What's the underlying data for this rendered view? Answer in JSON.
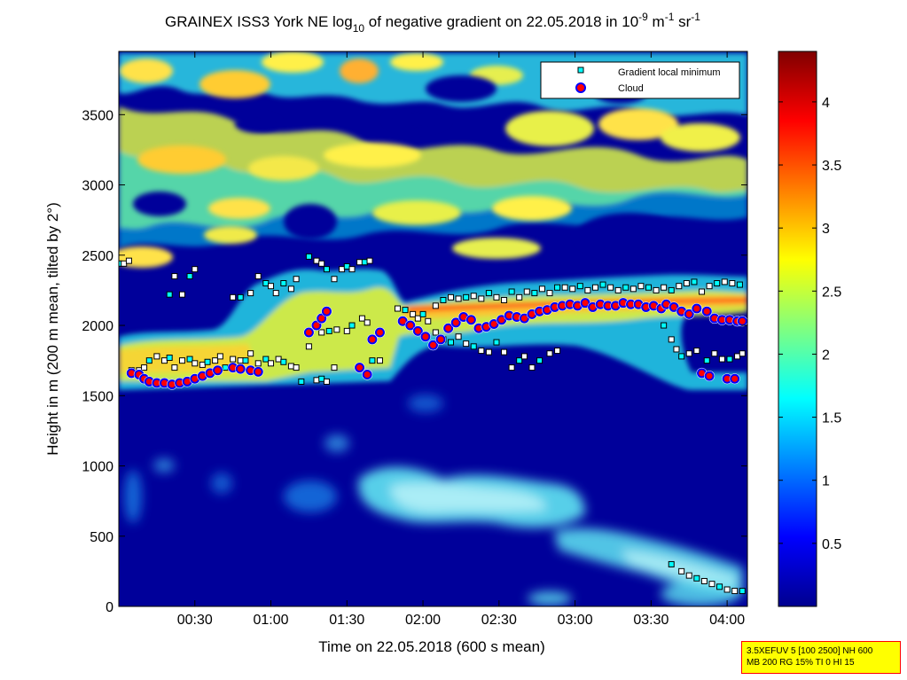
{
  "chart_data": {
    "type": "heatmap",
    "title": {
      "prefix": "GRAINEX ISS3 York NE log",
      "log_base": "10",
      "middle": " of negative gradient on 22.05.2018 in 10",
      "exp1": "-9",
      "unit_m": " m",
      "exp2": "-1",
      "unit_sr": " sr",
      "exp3": "-1"
    },
    "xlabel": "Time on 22.05.2018 (600 s mean)",
    "ylabel": "Height in m (200 m mean, tilted by 2°)",
    "xlim": [
      0,
      248
    ],
    "ylim": [
      0,
      3950
    ],
    "x_ticks": [
      {
        "value": 30,
        "label": "00:30"
      },
      {
        "value": 60,
        "label": "01:00"
      },
      {
        "value": 90,
        "label": "01:30"
      },
      {
        "value": 120,
        "label": "02:00"
      },
      {
        "value": 150,
        "label": "02:30"
      },
      {
        "value": 180,
        "label": "03:00"
      },
      {
        "value": 210,
        "label": "03:30"
      },
      {
        "value": 240,
        "label": "04:00"
      }
    ],
    "y_ticks": [
      {
        "value": 0,
        "label": "0"
      },
      {
        "value": 500,
        "label": "500"
      },
      {
        "value": 1000,
        "label": "1000"
      },
      {
        "value": 1500,
        "label": "1500"
      },
      {
        "value": 2000,
        "label": "2000"
      },
      {
        "value": 2500,
        "label": "2500"
      },
      {
        "value": 3000,
        "label": "3000"
      },
      {
        "value": 3500,
        "label": "3500"
      }
    ],
    "colorbar": {
      "range": [
        0,
        4.4
      ],
      "ticks": [
        {
          "value": 0.5,
          "label": "0.5"
        },
        {
          "value": 1,
          "label": "1"
        },
        {
          "value": 1.5,
          "label": "1.5"
        },
        {
          "value": 2,
          "label": "2"
        },
        {
          "value": 2.5,
          "label": "2.5"
        },
        {
          "value": 3,
          "label": "3"
        },
        {
          "value": 3.5,
          "label": "3.5"
        },
        {
          "value": 4,
          "label": "4"
        }
      ],
      "colormap": "jet"
    },
    "legend": {
      "placement": "top-right",
      "entries": [
        {
          "label": "Gradient local minimum",
          "marker": "square",
          "color": "#00ffff"
        },
        {
          "label": "Cloud",
          "marker": "circle",
          "color": "#ff0000"
        }
      ]
    },
    "heatmap_features": [
      {
        "kind": "band",
        "x": [
          0,
          248
        ],
        "y": [
          2800,
          3950
        ],
        "level": 2.3
      },
      {
        "kind": "band",
        "x": [
          0,
          30
        ],
        "y": [
          1600,
          1900
        ],
        "level": 2.4
      },
      {
        "kind": "band",
        "x": [
          30,
          120
        ],
        "y": [
          1600,
          2400
        ],
        "level": 2.2
      },
      {
        "kind": "band",
        "x": [
          120,
          248
        ],
        "y": [
          2050,
          2350
        ],
        "level": 2.5
      },
      {
        "kind": "blob",
        "x": [
          95,
          165
        ],
        "y": [
          560,
          1000
        ],
        "level": 1.4
      },
      {
        "kind": "blob",
        "x": [
          165,
          245
        ],
        "y": [
          250,
          600
        ],
        "level": 1.3
      }
    ],
    "series": [
      {
        "name": "Gradient local minimum",
        "points": [
          [
            0,
            2440
          ],
          [
            2,
            2440
          ],
          [
            4,
            2460
          ],
          [
            5,
            1680
          ],
          [
            8,
            1680
          ],
          [
            10,
            1700
          ],
          [
            12,
            1750
          ],
          [
            15,
            1780
          ],
          [
            18,
            1750
          ],
          [
            20,
            1770
          ],
          [
            22,
            1700
          ],
          [
            25,
            1750
          ],
          [
            28,
            1760
          ],
          [
            30,
            1730
          ],
          [
            33,
            1720
          ],
          [
            35,
            1740
          ],
          [
            38,
            1750
          ],
          [
            40,
            1780
          ],
          [
            42,
            1700
          ],
          [
            45,
            1760
          ],
          [
            48,
            1750
          ],
          [
            50,
            1750
          ],
          [
            52,
            1800
          ],
          [
            55,
            1730
          ],
          [
            58,
            1760
          ],
          [
            60,
            1730
          ],
          [
            63,
            1760
          ],
          [
            65,
            1740
          ],
          [
            68,
            1710
          ],
          [
            70,
            1700
          ],
          [
            72,
            1600
          ],
          [
            75,
            1850
          ],
          [
            78,
            1610
          ],
          [
            80,
            1620
          ],
          [
            82,
            1600
          ],
          [
            85,
            1700
          ],
          [
            20,
            2220
          ],
          [
            22,
            2350
          ],
          [
            25,
            2220
          ],
          [
            28,
            2350
          ],
          [
            30,
            2400
          ],
          [
            45,
            2200
          ],
          [
            48,
            2200
          ],
          [
            52,
            2230
          ],
          [
            55,
            2350
          ],
          [
            58,
            2300
          ],
          [
            60,
            2280
          ],
          [
            62,
            2230
          ],
          [
            65,
            2300
          ],
          [
            68,
            2260
          ],
          [
            70,
            2330
          ],
          [
            75,
            2490
          ],
          [
            78,
            2460
          ],
          [
            80,
            2440
          ],
          [
            82,
            2400
          ],
          [
            85,
            2330
          ],
          [
            88,
            2400
          ],
          [
            90,
            2420
          ],
          [
            92,
            2400
          ],
          [
            95,
            2450
          ],
          [
            97,
            2450
          ],
          [
            99,
            2460
          ],
          [
            80,
            1950
          ],
          [
            83,
            1960
          ],
          [
            86,
            1970
          ],
          [
            90,
            1960
          ],
          [
            92,
            2000
          ],
          [
            96,
            2050
          ],
          [
            98,
            2020
          ],
          [
            100,
            1750
          ],
          [
            103,
            1750
          ],
          [
            110,
            2120
          ],
          [
            113,
            2110
          ],
          [
            116,
            2080
          ],
          [
            118,
            2050
          ],
          [
            120,
            2080
          ],
          [
            122,
            2030
          ],
          [
            125,
            2140
          ],
          [
            128,
            2180
          ],
          [
            131,
            2200
          ],
          [
            134,
            2190
          ],
          [
            137,
            2200
          ],
          [
            140,
            2210
          ],
          [
            143,
            2190
          ],
          [
            146,
            2230
          ],
          [
            149,
            2200
          ],
          [
            152,
            2180
          ],
          [
            155,
            2240
          ],
          [
            158,
            2200
          ],
          [
            161,
            2240
          ],
          [
            164,
            2230
          ],
          [
            167,
            2260
          ],
          [
            170,
            2230
          ],
          [
            173,
            2270
          ],
          [
            176,
            2270
          ],
          [
            179,
            2260
          ],
          [
            182,
            2280
          ],
          [
            185,
            2250
          ],
          [
            188,
            2270
          ],
          [
            191,
            2290
          ],
          [
            194,
            2270
          ],
          [
            197,
            2250
          ],
          [
            200,
            2270
          ],
          [
            203,
            2260
          ],
          [
            206,
            2280
          ],
          [
            209,
            2270
          ],
          [
            212,
            2250
          ],
          [
            215,
            2270
          ],
          [
            218,
            2250
          ],
          [
            221,
            2280
          ],
          [
            224,
            2300
          ],
          [
            227,
            2310
          ],
          [
            230,
            2240
          ],
          [
            233,
            2280
          ],
          [
            236,
            2300
          ],
          [
            239,
            2310
          ],
          [
            242,
            2300
          ],
          [
            245,
            2290
          ],
          [
            125,
            1950
          ],
          [
            128,
            1900
          ],
          [
            131,
            1880
          ],
          [
            134,
            1920
          ],
          [
            137,
            1870
          ],
          [
            140,
            1850
          ],
          [
            143,
            1820
          ],
          [
            146,
            1810
          ],
          [
            149,
            1880
          ],
          [
            152,
            1810
          ],
          [
            155,
            1700
          ],
          [
            158,
            1750
          ],
          [
            160,
            1780
          ],
          [
            163,
            1700
          ],
          [
            166,
            1750
          ],
          [
            170,
            1800
          ],
          [
            173,
            1820
          ],
          [
            215,
            2000
          ],
          [
            218,
            1900
          ],
          [
            220,
            1830
          ],
          [
            222,
            1780
          ],
          [
            225,
            1800
          ],
          [
            228,
            1820
          ],
          [
            232,
            1750
          ],
          [
            235,
            1800
          ],
          [
            238,
            1760
          ],
          [
            241,
            1760
          ],
          [
            244,
            1780
          ],
          [
            246,
            1800
          ],
          [
            218,
            300
          ],
          [
            222,
            250
          ],
          [
            225,
            220
          ],
          [
            228,
            200
          ],
          [
            231,
            180
          ],
          [
            234,
            160
          ],
          [
            237,
            140
          ],
          [
            240,
            120
          ],
          [
            243,
            110
          ],
          [
            246,
            110
          ]
        ]
      },
      {
        "name": "Cloud",
        "points": [
          [
            5,
            1660
          ],
          [
            8,
            1650
          ],
          [
            10,
            1620
          ],
          [
            12,
            1600
          ],
          [
            15,
            1590
          ],
          [
            18,
            1590
          ],
          [
            21,
            1580
          ],
          [
            24,
            1590
          ],
          [
            27,
            1600
          ],
          [
            30,
            1620
          ],
          [
            33,
            1640
          ],
          [
            36,
            1660
          ],
          [
            39,
            1680
          ],
          [
            45,
            1700
          ],
          [
            48,
            1690
          ],
          [
            52,
            1680
          ],
          [
            55,
            1670
          ],
          [
            75,
            1950
          ],
          [
            78,
            2000
          ],
          [
            80,
            2050
          ],
          [
            82,
            2100
          ],
          [
            95,
            1700
          ],
          [
            98,
            1650
          ],
          [
            100,
            1900
          ],
          [
            103,
            1950
          ],
          [
            112,
            2030
          ],
          [
            115,
            2000
          ],
          [
            118,
            1960
          ],
          [
            121,
            1920
          ],
          [
            124,
            1860
          ],
          [
            127,
            1900
          ],
          [
            130,
            1980
          ],
          [
            133,
            2020
          ],
          [
            136,
            2060
          ],
          [
            139,
            2040
          ],
          [
            142,
            1980
          ],
          [
            145,
            1990
          ],
          [
            148,
            2010
          ],
          [
            151,
            2040
          ],
          [
            154,
            2070
          ],
          [
            157,
            2060
          ],
          [
            160,
            2050
          ],
          [
            163,
            2080
          ],
          [
            166,
            2100
          ],
          [
            169,
            2110
          ],
          [
            172,
            2130
          ],
          [
            175,
            2140
          ],
          [
            178,
            2150
          ],
          [
            181,
            2140
          ],
          [
            184,
            2160
          ],
          [
            187,
            2130
          ],
          [
            190,
            2150
          ],
          [
            193,
            2140
          ],
          [
            196,
            2140
          ],
          [
            199,
            2160
          ],
          [
            202,
            2150
          ],
          [
            205,
            2150
          ],
          [
            208,
            2130
          ],
          [
            211,
            2140
          ],
          [
            214,
            2120
          ],
          [
            216,
            2150
          ],
          [
            219,
            2130
          ],
          [
            222,
            2100
          ],
          [
            225,
            2080
          ],
          [
            228,
            2120
          ],
          [
            232,
            2100
          ],
          [
            235,
            2050
          ],
          [
            238,
            2040
          ],
          [
            241,
            2040
          ],
          [
            244,
            2030
          ],
          [
            246,
            2030
          ],
          [
            230,
            1660
          ],
          [
            233,
            1640
          ],
          [
            240,
            1620
          ],
          [
            243,
            1620
          ]
        ]
      }
    ]
  },
  "info_box": {
    "line1": "3.5XEFUV 5 [100 2500] NH 600",
    "line2": "MB 200 RG 15% TI 0 HI 15"
  }
}
